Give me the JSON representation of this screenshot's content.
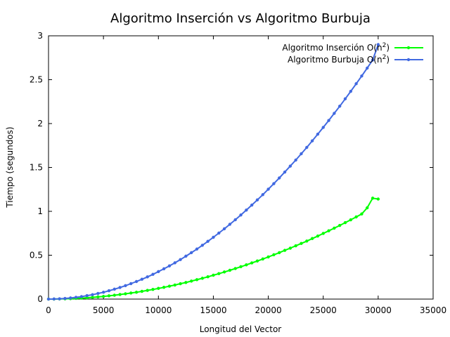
{
  "chart_data": {
    "type": "line",
    "title": "Algoritmo Inserción vs Algoritmo Burbuja",
    "xlabel": "Longitud del Vector",
    "ylabel": "Tiempo (segundos)",
    "xlim": [
      0,
      35000
    ],
    "ylim": [
      0,
      3
    ],
    "x_ticks": [
      "0",
      "5000",
      "10000",
      "15000",
      "20000",
      "25000",
      "30000",
      "35000"
    ],
    "y_ticks": [
      "0",
      "0.5",
      "1",
      "1.5",
      "2",
      "2.5",
      "3"
    ],
    "grid": false,
    "legend_position": "top-right",
    "series": [
      {
        "name": "Algoritmo Inserción O(n²)",
        "color": "#00ff00",
        "x": [
          0,
          500,
          1000,
          1500,
          2000,
          2500,
          3000,
          3500,
          4000,
          4500,
          5000,
          5500,
          6000,
          6500,
          7000,
          7500,
          8000,
          8500,
          9000,
          9500,
          10000,
          10500,
          11000,
          11500,
          12000,
          12500,
          13000,
          13500,
          14000,
          14500,
          15000,
          15500,
          16000,
          16500,
          17000,
          17500,
          18000,
          18500,
          19000,
          19500,
          20000,
          20500,
          21000,
          21500,
          22000,
          22500,
          23000,
          23500,
          24000,
          24500,
          25000,
          25500,
          26000,
          26500,
          27000,
          27500,
          28000,
          28500,
          29000,
          29500,
          30000
        ],
        "values": [
          0,
          0,
          0.002,
          0.003,
          0.005,
          0.008,
          0.011,
          0.015,
          0.02,
          0.025,
          0.03,
          0.037,
          0.044,
          0.052,
          0.06,
          0.069,
          0.078,
          0.088,
          0.099,
          0.11,
          0.122,
          0.134,
          0.147,
          0.16,
          0.175,
          0.189,
          0.205,
          0.221,
          0.237,
          0.254,
          0.272,
          0.29,
          0.309,
          0.328,
          0.348,
          0.369,
          0.39,
          0.412,
          0.434,
          0.457,
          0.48,
          0.505,
          0.529,
          0.555,
          0.58,
          0.607,
          0.634,
          0.661,
          0.69,
          0.718,
          0.748,
          0.778,
          0.808,
          0.839,
          0.871,
          0.903,
          0.936,
          0.97,
          1.04,
          1.15,
          1.14
        ]
      },
      {
        "name": "Algoritmo Burbuja O(n²)",
        "color": "#4169e1",
        "x": [
          0,
          500,
          1000,
          1500,
          2000,
          2500,
          3000,
          3500,
          4000,
          4500,
          5000,
          5500,
          6000,
          6500,
          7000,
          7500,
          8000,
          8500,
          9000,
          9500,
          10000,
          10500,
          11000,
          11500,
          12000,
          12500,
          13000,
          13500,
          14000,
          14500,
          15000,
          15500,
          16000,
          16500,
          17000,
          17500,
          18000,
          18500,
          19000,
          19500,
          20000,
          20500,
          21000,
          21500,
          22000,
          22500,
          23000,
          23500,
          24000,
          24500,
          25000,
          25500,
          26000,
          26500,
          27000,
          27500,
          28000,
          28500,
          29000,
          29500,
          30000
        ],
        "values": [
          0,
          0.001,
          0.003,
          0.007,
          0.013,
          0.02,
          0.028,
          0.039,
          0.05,
          0.064,
          0.078,
          0.095,
          0.113,
          0.132,
          0.153,
          0.176,
          0.2,
          0.226,
          0.253,
          0.282,
          0.313,
          0.345,
          0.378,
          0.413,
          0.45,
          0.489,
          0.529,
          0.57,
          0.613,
          0.658,
          0.704,
          0.752,
          0.801,
          0.852,
          0.904,
          0.958,
          1.014,
          1.071,
          1.13,
          1.19,
          1.252,
          1.315,
          1.38,
          1.447,
          1.515,
          1.584,
          1.656,
          1.728,
          1.803,
          1.879,
          1.956,
          2.035,
          2.116,
          2.198,
          2.282,
          2.367,
          2.454,
          2.542,
          2.632,
          2.724,
          2.9
        ]
      }
    ]
  }
}
